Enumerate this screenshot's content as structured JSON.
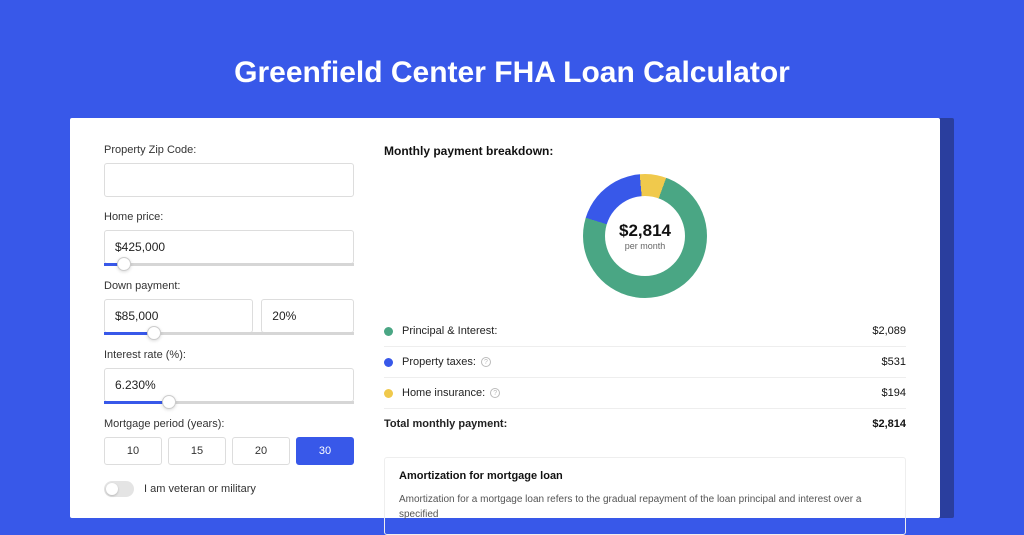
{
  "page": {
    "title": "Greenfield Center FHA Loan Calculator",
    "bg_color": "#3858e9",
    "shadow_color": "#2a3e9e"
  },
  "form": {
    "zip": {
      "label": "Property Zip Code:",
      "value": ""
    },
    "home_price": {
      "label": "Home price:",
      "value": "$425,000",
      "slider_pct": 8
    },
    "down_payment": {
      "label": "Down payment:",
      "amount": "$85,000",
      "percent": "20%",
      "slider_pct": 20
    },
    "interest": {
      "label": "Interest rate (%):",
      "value": "6.230%",
      "slider_pct": 26
    },
    "period": {
      "label": "Mortgage period (years):",
      "options": [
        "10",
        "15",
        "20",
        "30"
      ],
      "selected": "30"
    },
    "veteran": {
      "label": "I am veteran or military",
      "checked": false
    }
  },
  "breakdown": {
    "title": "Monthly payment breakdown:",
    "donut": {
      "total_label": "$2,814",
      "sub_label": "per month",
      "slices": [
        {
          "color": "#4aa684",
          "pct": 74.2,
          "label": "Principal & Interest:",
          "value": "$2,089"
        },
        {
          "color": "#3858e9",
          "pct": 18.9,
          "label": "Property taxes:",
          "value": "$531",
          "info": true
        },
        {
          "color": "#f0c94c",
          "pct": 6.9,
          "label": "Home insurance:",
          "value": "$194",
          "info": true
        }
      ]
    },
    "total_row": {
      "label": "Total monthly payment:",
      "value": "$2,814"
    }
  },
  "amort": {
    "title": "Amortization for mortgage loan",
    "text": "Amortization for a mortgage loan refers to the gradual repayment of the loan principal and interest over a specified"
  }
}
